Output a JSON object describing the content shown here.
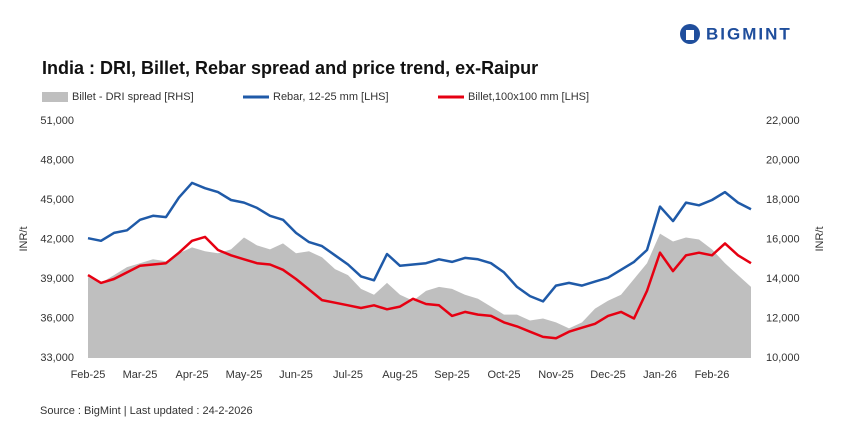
{
  "brand": "BIGMINT",
  "chart_data": {
    "type": "line",
    "title": "India : DRI, Billet, Rebar spread and price trend, ex-Raipur",
    "source": "Source : BigMint | Last updated : 24-2-2026",
    "y_label": "INR/t",
    "y2_label": "INR/t",
    "categories": [
      "Feb-25",
      null,
      null,
      null,
      "Mar-25",
      null,
      null,
      null,
      "Apr-25",
      null,
      null,
      null,
      "May-25",
      null,
      null,
      null,
      "Jun-25",
      null,
      null,
      null,
      "Jul-25",
      null,
      null,
      null,
      "Aug-25",
      null,
      null,
      null,
      "Sep-25",
      null,
      null,
      null,
      "Oct-25",
      null,
      null,
      null,
      "Nov-25",
      null,
      null,
      null,
      "Dec-25",
      null,
      null,
      null,
      "Jan-26",
      null,
      null,
      null,
      "Feb-26",
      null,
      null,
      null
    ],
    "ylim": [
      33000,
      51000
    ],
    "yticks": [
      {
        "value": 33000,
        "label": "33,000"
      },
      {
        "value": 36000,
        "label": "36,000"
      },
      {
        "value": 39000,
        "label": "39,000"
      },
      {
        "value": 42000,
        "label": "42,000"
      },
      {
        "value": 45000,
        "label": "45,000"
      },
      {
        "value": 48000,
        "label": "48,000"
      },
      {
        "value": 51000,
        "label": "51,000"
      }
    ],
    "y2lim": [
      10000,
      22000
    ],
    "y2ticks": [
      {
        "value": 10000,
        "label": "10,000"
      },
      {
        "value": 12000,
        "label": "12,000"
      },
      {
        "value": 14000,
        "label": "14,000"
      },
      {
        "value": 16000,
        "label": "16,000"
      },
      {
        "value": 18000,
        "label": "18,000"
      },
      {
        "value": 20000,
        "label": "20,000"
      },
      {
        "value": 22000,
        "label": "22,000"
      }
    ],
    "series": [
      {
        "name": "Billet - DRI spread  [RHS]",
        "color": "#bfbfbf",
        "axis": "y2",
        "style": "area",
        "values": [
          14100,
          13800,
          14200,
          14600,
          14800,
          15000,
          14900,
          15300,
          15600,
          15400,
          15300,
          15500,
          16100,
          15700,
          15500,
          15800,
          15300,
          15400,
          15100,
          14500,
          14200,
          13500,
          13200,
          13800,
          13200,
          12900,
          13400,
          13600,
          13500,
          13200,
          13000,
          12600,
          12200,
          12200,
          11900,
          12000,
          11800,
          11500,
          11800,
          12500,
          12900,
          13200,
          14000,
          14800,
          16300,
          15900,
          16100,
          16000,
          15500,
          14800,
          14200,
          13600
        ]
      },
      {
        "name": "Rebar, 12-25 mm [LHS]",
        "color": "#1f5aa8",
        "style": "line",
        "values": [
          42100,
          41900,
          42500,
          42700,
          43500,
          43800,
          43700,
          45200,
          46300,
          45900,
          45600,
          45000,
          44800,
          44400,
          43800,
          43500,
          42500,
          41800,
          41500,
          40800,
          40100,
          39200,
          38900,
          40900,
          40000,
          40100,
          40200,
          40500,
          40300,
          40600,
          40500,
          40200,
          39500,
          38400,
          37700,
          37300,
          38500,
          38700,
          38500,
          38800,
          39100,
          39700,
          40300,
          41200,
          44500,
          43400,
          44800,
          44600,
          45000,
          45600,
          44800,
          44300
        ]
      },
      {
        "name": "Billet,100x100 mm [LHS]",
        "color": "#e60012",
        "style": "line",
        "values": [
          39300,
          38700,
          39000,
          39500,
          40000,
          40100,
          40200,
          41000,
          41900,
          42200,
          41200,
          40800,
          40500,
          40200,
          40100,
          39700,
          39000,
          38200,
          37400,
          37200,
          37000,
          36800,
          37000,
          36700,
          36900,
          37500,
          37100,
          37000,
          36200,
          36500,
          36300,
          36200,
          35700,
          35400,
          35000,
          34600,
          34500,
          35000,
          35300,
          35600,
          36200,
          36500,
          36000,
          38100,
          41000,
          39600,
          40800,
          41000,
          40800,
          41700,
          40800,
          40200
        ]
      }
    ]
  }
}
